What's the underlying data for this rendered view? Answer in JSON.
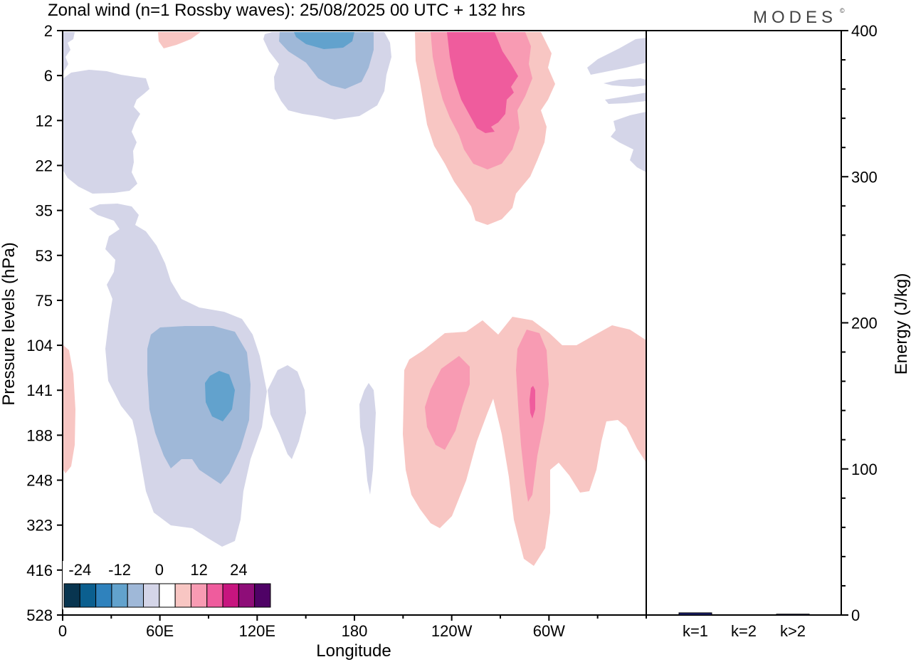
{
  "chart_data": [
    {
      "type": "heatmap",
      "title": "Zonal wind (n=1 Rossby waves):  25/08/2025  00 UTC  + 132 hrs",
      "xlabel": "Longitude",
      "ylabel": "Pressure levels (hPa)",
      "xticks": [
        "0",
        "60E",
        "120E",
        "180",
        "120W",
        "60W"
      ],
      "xtick_values": [
        0,
        60,
        120,
        180,
        240,
        300
      ],
      "xlim": [
        0,
        360
      ],
      "yticks": [
        "2",
        "6",
        "12",
        "22",
        "35",
        "53",
        "75",
        "104",
        "141",
        "188",
        "248",
        "323",
        "416",
        "528"
      ],
      "colorbar": {
        "labels": [
          "-24",
          "-12",
          "0",
          "12",
          "24"
        ],
        "label_positions": [
          1,
          3.5,
          6,
          8.5,
          11
        ],
        "colors": [
          "#083550",
          "#0b5f8f",
          "#2f82bd",
          "#62a2cd",
          "#9fb8d8",
          "#d4d5e8",
          "#ffffff",
          "#f8c6c3",
          "#f89bb3",
          "#ef5c9d",
          "#c7157f",
          "#8e0d78",
          "#4f0266"
        ]
      }
    },
    {
      "type": "bar",
      "title": "",
      "ylabel": "Energy (J/kg)",
      "categories": [
        "k=1",
        "k=2",
        "k>2"
      ],
      "values": [
        1.5,
        0.0,
        0.6
      ],
      "ylim": [
        0,
        400
      ],
      "yticks": [
        0,
        100,
        200,
        300,
        400
      ],
      "bar_color": "#1a1f6e"
    }
  ],
  "brand": {
    "logo_text": "MODES"
  }
}
